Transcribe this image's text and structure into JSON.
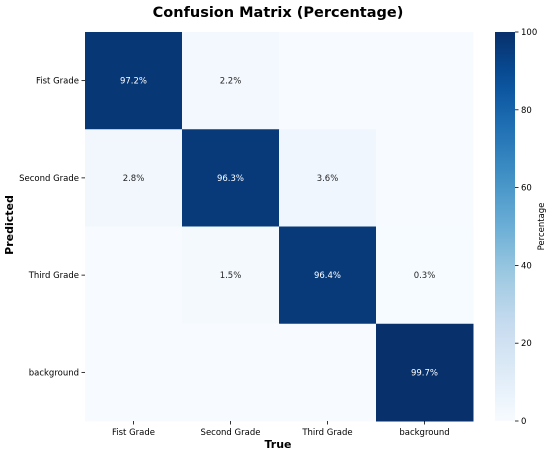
{
  "chart_data": {
    "type": "heatmap",
    "title": "Confusion Matrix (Percentage)",
    "xlabel": "True",
    "ylabel": "Predicted",
    "x_categories": [
      "Fist Grade",
      "Second Grade",
      "Third Grade",
      "background"
    ],
    "y_categories": [
      "Fist Grade",
      "Second Grade",
      "Third Grade",
      "background"
    ],
    "values": [
      [
        97.2,
        2.2,
        0.0,
        0.0
      ],
      [
        2.8,
        96.3,
        3.6,
        0.0
      ],
      [
        0.0,
        1.5,
        96.4,
        0.3
      ],
      [
        0.0,
        0.0,
        0.0,
        99.7
      ]
    ],
    "cell_labels": [
      [
        "97.2%",
        "2.2%",
        "",
        ""
      ],
      [
        "2.8%",
        "96.3%",
        "3.6%",
        ""
      ],
      [
        "",
        "1.5%",
        "96.4%",
        "0.3%"
      ],
      [
        "",
        "",
        "",
        "99.7%"
      ]
    ],
    "colormap": "Blues",
    "colorbar": {
      "label": "Percentage",
      "range": [
        0,
        100
      ],
      "ticks": [
        "0",
        "20",
        "40",
        "60",
        "80",
        "100"
      ]
    }
  }
}
